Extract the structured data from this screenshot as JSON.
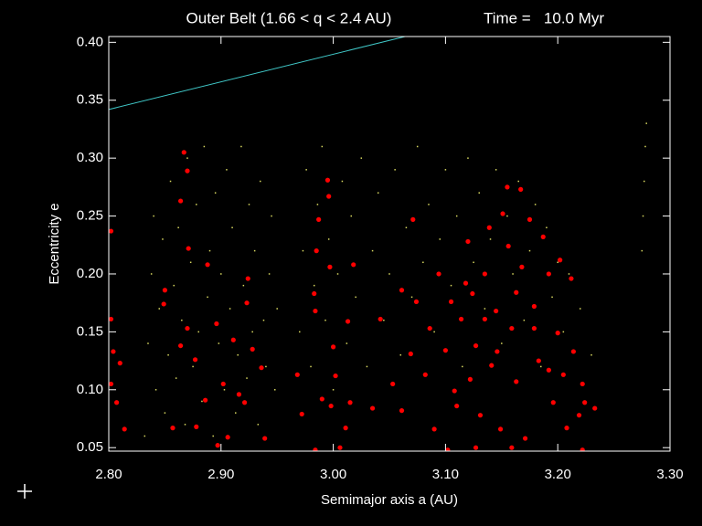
{
  "chart_data": {
    "type": "scatter",
    "title": "Outer Belt (1.66 < q < 2.4 AU)",
    "time_label": "Time =   10.0 Myr",
    "x_label": "Semimajor axis a (AU)",
    "y_label": "Eccentricity e",
    "xlim": [
      2.8,
      3.3
    ],
    "ylim": [
      0.047,
      0.405
    ],
    "xticks": [
      {
        "value": 2.8,
        "label": "2.80"
      },
      {
        "value": 2.9,
        "label": "2.90"
      },
      {
        "value": 3.0,
        "label": "3.00"
      },
      {
        "value": 3.1,
        "label": "3.10"
      },
      {
        "value": 3.2,
        "label": "3.20"
      },
      {
        "value": 3.3,
        "label": "3.30"
      }
    ],
    "yticks": [
      0.05,
      {
        "value": 0.1,
        "label": "0.10"
      },
      0.15,
      {
        "value": 0.2,
        "label": "0.20"
      },
      0.25,
      {
        "value": 0.3,
        "label": "0.30"
      },
      0.35,
      {
        "value": 0.4,
        "label": "0.40"
      }
    ],
    "series": [
      {
        "color": "#d8d860",
        "marker": "dot",
        "x": [
          2.832,
          2.835,
          2.838,
          2.84,
          2.842,
          2.845,
          2.848,
          2.85,
          2.853,
          2.855,
          2.858,
          2.86,
          2.862,
          2.865,
          2.868,
          2.87,
          2.873,
          2.875,
          2.878,
          2.88,
          2.883,
          2.885,
          2.888,
          2.89,
          2.893,
          2.895,
          2.898,
          2.9,
          2.903,
          2.905,
          2.908,
          2.91,
          2.913,
          2.915,
          2.918,
          2.92,
          2.923,
          2.925,
          2.928,
          2.93,
          2.933,
          2.935,
          2.938,
          2.94,
          2.943,
          2.945,
          2.948,
          2.95,
          2.97,
          2.973,
          2.976,
          2.98,
          2.983,
          2.986,
          2.99,
          2.993,
          2.996,
          3.0,
          3.004,
          3.008,
          3.012,
          3.016,
          3.02,
          3.025,
          3.03,
          3.035,
          3.04,
          3.045,
          3.05,
          3.055,
          3.06,
          3.065,
          3.07,
          3.075,
          3.08,
          3.085,
          3.09,
          3.095,
          3.1,
          3.105,
          3.11,
          3.115,
          3.12,
          3.125,
          3.13,
          3.135,
          3.14,
          3.145,
          3.15,
          3.155,
          3.16,
          3.165,
          3.17,
          3.175,
          3.18,
          3.185,
          3.19,
          3.195,
          3.2,
          3.205,
          3.21,
          3.22,
          3.23,
          3.275,
          3.276,
          3.277,
          3.278,
          3.279
        ],
        "values": [
          0.06,
          0.14,
          0.2,
          0.25,
          0.1,
          0.17,
          0.23,
          0.08,
          0.13,
          0.28,
          0.19,
          0.11,
          0.24,
          0.16,
          0.07,
          0.3,
          0.21,
          0.12,
          0.26,
          0.15,
          0.09,
          0.31,
          0.18,
          0.22,
          0.06,
          0.27,
          0.14,
          0.2,
          0.1,
          0.29,
          0.17,
          0.24,
          0.08,
          0.13,
          0.31,
          0.19,
          0.11,
          0.26,
          0.15,
          0.22,
          0.07,
          0.28,
          0.16,
          0.12,
          0.2,
          0.25,
          0.1,
          0.17,
          0.15,
          0.22,
          0.29,
          0.12,
          0.19,
          0.26,
          0.31,
          0.16,
          0.23,
          0.1,
          0.2,
          0.28,
          0.14,
          0.25,
          0.18,
          0.3,
          0.12,
          0.22,
          0.27,
          0.16,
          0.2,
          0.29,
          0.13,
          0.24,
          0.18,
          0.31,
          0.21,
          0.26,
          0.15,
          0.23,
          0.29,
          0.19,
          0.25,
          0.12,
          0.3,
          0.21,
          0.27,
          0.17,
          0.23,
          0.29,
          0.14,
          0.25,
          0.2,
          0.28,
          0.16,
          0.22,
          0.26,
          0.12,
          0.24,
          0.18,
          0.21,
          0.15,
          0.2,
          0.17,
          0.13,
          0.22,
          0.25,
          0.28,
          0.31,
          0.33
        ]
      },
      {
        "color": "#ff0000",
        "marker": "circle",
        "x": [
          2.802,
          2.802,
          2.804,
          2.802,
          2.807,
          2.81,
          2.814,
          2.867,
          2.87,
          2.864,
          2.871,
          2.888,
          2.849,
          2.85,
          2.864,
          2.87,
          2.877,
          2.886,
          2.857,
          2.878,
          2.897,
          2.896,
          2.902,
          2.911,
          2.916,
          2.923,
          2.924,
          2.928,
          2.936,
          2.921,
          2.939,
          2.906,
          2.968,
          2.972,
          2.983,
          2.985,
          2.987,
          2.995,
          2.996,
          2.997,
          2.984,
          3.0,
          3.002,
          2.998,
          3.011,
          3.015,
          3.013,
          3.018,
          2.99,
          3.006,
          2.984,
          3.035,
          3.042,
          3.053,
          3.061,
          3.069,
          3.071,
          3.061,
          3.082,
          3.09,
          3.094,
          3.1,
          3.105,
          3.108,
          3.114,
          3.12,
          3.124,
          3.127,
          3.131,
          3.135,
          3.139,
          3.141,
          3.145,
          3.149,
          3.151,
          3.155,
          3.156,
          3.159,
          3.163,
          3.167,
          3.168,
          3.171,
          3.175,
          3.179,
          3.183,
          3.187,
          3.192,
          3.196,
          3.2,
          3.202,
          3.205,
          3.208,
          3.212,
          3.214,
          3.219,
          3.222,
          3.224,
          3.233,
          3.102,
          3.127,
          3.159,
          3.222,
          3.11,
          3.122,
          3.146,
          3.135,
          3.118,
          3.163,
          3.179,
          3.192,
          3.086,
          3.074
        ],
        "values": [
          0.237,
          0.161,
          0.133,
          0.105,
          0.089,
          0.123,
          0.066,
          0.305,
          0.289,
          0.263,
          0.222,
          0.208,
          0.174,
          0.186,
          0.138,
          0.153,
          0.126,
          0.091,
          0.067,
          0.068,
          0.052,
          0.157,
          0.105,
          0.143,
          0.096,
          0.175,
          0.196,
          0.135,
          0.119,
          0.089,
          0.058,
          0.059,
          0.113,
          0.079,
          0.183,
          0.22,
          0.247,
          0.281,
          0.267,
          0.206,
          0.168,
          0.137,
          0.112,
          0.086,
          0.067,
          0.089,
          0.159,
          0.208,
          0.092,
          0.05,
          0.048,
          0.084,
          0.161,
          0.105,
          0.186,
          0.131,
          0.247,
          0.082,
          0.113,
          0.066,
          0.2,
          0.134,
          0.176,
          0.099,
          0.161,
          0.228,
          0.183,
          0.138,
          0.078,
          0.2,
          0.24,
          0.121,
          0.168,
          0.066,
          0.252,
          0.275,
          0.224,
          0.153,
          0.107,
          0.273,
          0.206,
          0.058,
          0.247,
          0.172,
          0.125,
          0.232,
          0.2,
          0.089,
          0.149,
          0.212,
          0.113,
          0.067,
          0.196,
          0.133,
          0.078,
          0.105,
          0.089,
          0.084,
          0.048,
          0.05,
          0.05,
          0.048,
          0.086,
          0.109,
          0.133,
          0.161,
          0.192,
          0.184,
          0.153,
          0.117,
          0.153,
          0.176
        ]
      },
      {
        "color": "#40c8c8",
        "marker": "line",
        "x": [
          2.8,
          3.064
        ],
        "values": [
          0.342,
          0.405
        ]
      }
    ]
  }
}
